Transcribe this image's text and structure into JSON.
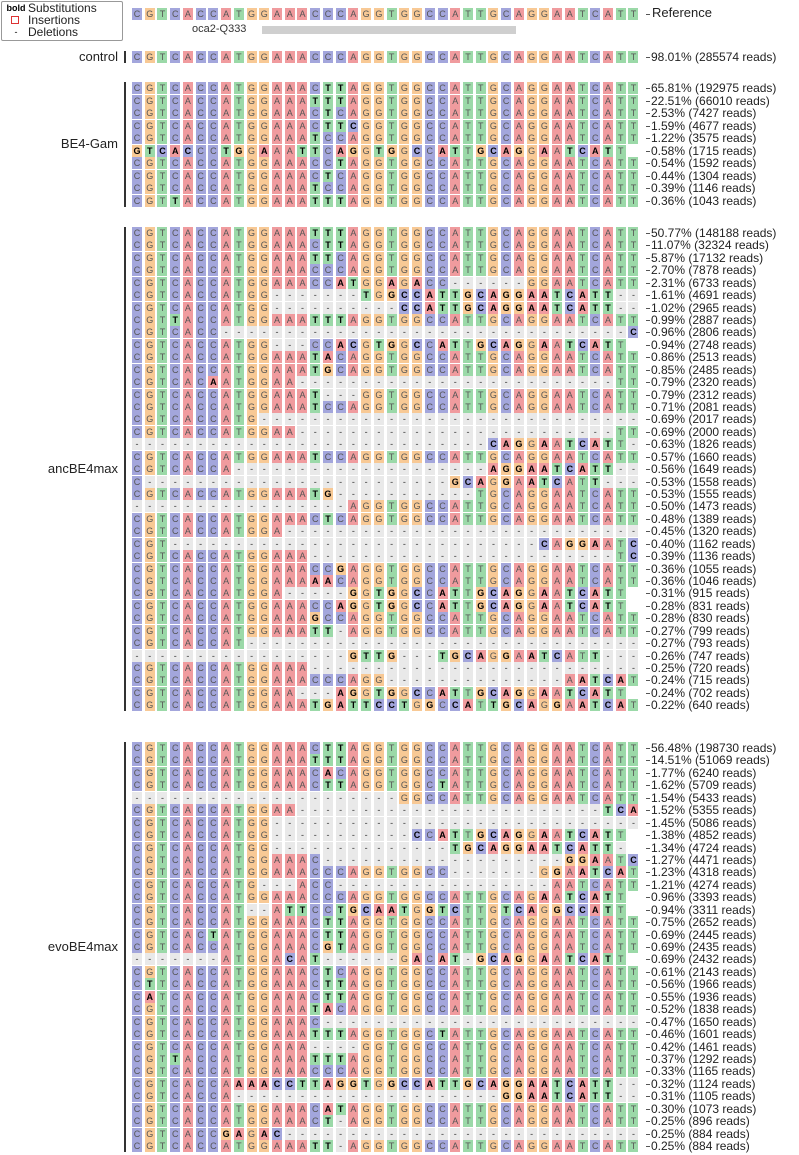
{
  "legend": {
    "substitutions_key": "bold",
    "substitutions": "Substitutions",
    "insertions": "Insertions",
    "deletions_key": "-",
    "deletions": "Deletions"
  },
  "reference": {
    "label": "Reference",
    "sequence": "CGTCACCATGGAAACCCAGGTGGCCATTGCAGGAATCATT",
    "guide_label": "oca2-Q333"
  },
  "base_colors": {
    "A": "#f09b9e",
    "C": "#a3a6dc",
    "G": "#f8c995",
    "T": "#9bd9a8",
    "gap": "#e9e9e9",
    "insertion_box": "#d33333"
  },
  "groups": [
    {
      "name": "control",
      "rows": [
        {
          "seq": "CGTCACCATGGAAACCCAGGTGGCCATTGCAGGAATCATT",
          "label": "98.01% (285574 reads)"
        }
      ]
    },
    {
      "name": "BE4-Gam",
      "rows": [
        {
          "seq": "CGTCACCATGGAAACTTAGGTGGCCATTGCAGGAATCATT",
          "label": "65.81% (192975 reads)"
        },
        {
          "seq": "CGTCACCATGGAAATTTAGGTGGCCATTGCAGGAATCATT",
          "label": "22.51% (66010 reads)"
        },
        {
          "seq": "CGTCACCATGGAAACTCAGGTGGCCATTGCAGGAATCATT",
          "label": "2.53% (7427 reads)"
        },
        {
          "seq": "CGTCACCATGGAAACTTCGGTGGCCATTGCAGGAATCATT",
          "label": "1.59% (4677 reads)"
        },
        {
          "seq": "CGTCACCATGGAAATCCAGGTGGCCATTGCAGGAATCATT",
          "label": "1.22% (3575 reads)"
        },
        {
          "seq": "GTCACCCTGGAAATTCAGGTGGCCATTGCAGGAATCATT",
          "label": "0.58% (1715 reads)"
        },
        {
          "seq": "CGTCACCATGGAAACCTAGGTGGCCATTGCAGGAATCATT",
          "label": "0.54% (1592 reads)"
        },
        {
          "seq": "CGTCACCATGGAAACTCAGGTGGCCATTGCAGGAATCATT",
          "label": "0.44% (1304 reads)"
        },
        {
          "seq": "CGTCACCATGGAAATCCAGGTGGCCATTGCAGGAATCATT",
          "label": "0.39% (1146 reads)"
        },
        {
          "seq": "CGTTACCATGGAAATTTAGGTGGCCATTGCAGGAATCATT",
          "label": "0.36% (1043 reads)"
        }
      ]
    },
    {
      "name": "ancBE4max",
      "rows": [
        {
          "seq": "CGTCACCATGGAAATTTAGGTGGCCATTGCAGGAATCATT",
          "label": "50.77% (148188 reads)"
        },
        {
          "seq": "CGTCACCATGGAAACTTAGGTGGCCATTGCAGGAATCATT",
          "label": "11.07% (32324 reads)"
        },
        {
          "seq": "CGTCACCATGGAAATTCAGGTGGCCATTGCAGGAATCATT",
          "label": "5.87% (17132 reads)"
        },
        {
          "seq": "CGTCACCATGGAAACCCAGGTGGCCATTGCAGGAATCATT",
          "label": "2.70% (7878 reads)"
        },
        {
          "seq": "CGTCACCATGGAAACCATGGAGACC------GGAATCATT",
          "label": "2.31% (6733 reads)"
        },
        {
          "seq": "CGTCACCATGG-------TGGCCATTGCAGGAATCATT--",
          "label": "1.61% (4691 reads)"
        },
        {
          "seq": "CGTCACCATGG----------CCATTGCAGGAATCATT--",
          "label": "1.02% (2965 reads)"
        },
        {
          "seq": "CGTTACCATGGAAATTTAGGTGGCCATTGCAGGAATCATT",
          "label": "0.99% (2887 reads)"
        },
        {
          "seq": "CGTCACC--------------------------------C",
          "label": "0.96% (2806 reads)"
        },
        {
          "seq": "CGTCACCATGG---CCACGTGGCCATTGCAGGAATCATT",
          "label": "0.94% (2748 reads)"
        },
        {
          "seq": "CGTCACCATGGAAATACAGGTGGCCATTGCAGGAATCATT",
          "label": "0.86% (2513 reads)"
        },
        {
          "seq": "CGTCACCATGGAAATGCAGGTGGCCATTGCAGGAATCATT",
          "label": "0.85% (2485 reads)"
        },
        {
          "seq": "CGTCACAATGGAA-------------------------TT",
          "label": "0.79% (2320 reads)"
        },
        {
          "seq": "CGTCACCATGGAAAT---GGTGGCCATTGCAGGAATCATT",
          "label": "0.79% (2312 reads)"
        },
        {
          "seq": "CGTCACCATGGAAATCCAGGTGGCCATTGCAGGAATCATT",
          "label": "0.71% (2081 reads)"
        },
        {
          "seq": "CGTCACCATG------------------------------",
          "label": "0.69% (2017 reads)"
        },
        {
          "seq": "CGTCACCATGGAA-------------------------TT",
          "label": "0.69% (2000 reads)"
        },
        {
          "seq": "----------------------------CAGGAATCATT-",
          "label": "0.63% (1826 reads)"
        },
        {
          "seq": "CGTCACCATGGAAATCCAGGTGGCCATTGCAGGAATCATT",
          "label": "0.57% (1660 reads)"
        },
        {
          "seq": "CGTCACCA--------------------AGGAATCATT--",
          "label": "0.56% (1649 reads)"
        },
        {
          "seq": "C------------------------GCAGGAATCATT---",
          "label": "0.53% (1558 reads)"
        },
        {
          "seq": "CGTCACCATGGAAATG-----------TGCAGGAATCATT",
          "label": "0.53% (1555 reads)"
        },
        {
          "seq": "-----------------AGGTGGCCATTGCAGGAATCATT",
          "label": "0.50% (1473 reads)"
        },
        {
          "seq": "CGTCACCATGGAAACTCAGGTGGCCATTGCAGGAATCATT",
          "label": "0.48% (1389 reads)"
        },
        {
          "seq": "CGTCACCATGGA----------------------------",
          "label": "0.45% (1320 reads)"
        },
        {
          "seq": "CGT-----------------------------CAGGAATCATT",
          "label": "0.40% (1162 reads)"
        },
        {
          "seq": "CGTCACCATGGAAA------------------------TCATT",
          "label": "0.39% (1136 reads)"
        },
        {
          "seq": "CGTCACCATGGAAACCGAGGTGGCCATTGCAGGAATCATT",
          "label": "0.36% (1055 reads)"
        },
        {
          "seq": "CGTCACCATGGAAAAACAGGTGGCCATTGCAGGAATCATT",
          "label": "0.36% (1046 reads)"
        },
        {
          "seq": "CGTCACCATGGA-----GGTGGCCATTGCAGGAATCATT",
          "label": "0.31% (915 reads)"
        },
        {
          "seq": "CGTCACCATGGAAACCAGGTGGCCATTGCAGGAATCATT",
          "label": "0.28% (831 reads)"
        },
        {
          "seq": "CGTCACCATGGAAAGCCAGGTGGCCATTGCAGGAATCATT",
          "label": "0.28% (830 reads)"
        },
        {
          "seq": "CGTCACCATGGAAATT-AGGTGGCCATTGCAGGAATCATT",
          "label": "0.27% (799 reads)"
        },
        {
          "seq": "CGTCACCAT-------------------------------",
          "label": "0.27% (793 reads)"
        },
        {
          "seq": "-----------------GTTG---TGCAGGAATCATT---",
          "label": "0.26% (747 reads)"
        },
        {
          "seq": "CGTCACCATGGAAA--------------------------",
          "label": "0.25% (720 reads)"
        },
        {
          "seq": "CGTCACCATGGAAACCCAGG--------------AATCATT",
          "label": "0.24% (715 reads)"
        },
        {
          "seq": "CGTCACCATGGAA---AGGTGGCCATTGCAGGAATCATT",
          "label": "0.24% (702 reads)"
        },
        {
          "seq": "CGTCACCATGGAAATGATTCCTGGCCATTGCAGGAATCATT",
          "label": "0.22% (640 reads)"
        }
      ]
    },
    {
      "name": "evoBE4max",
      "rows": [
        {
          "seq": "CGTCACCATGGAAACTTAGGTGGCCATTGCAGGAATCATT",
          "label": "56.48% (198730 reads)"
        },
        {
          "seq": "CGTCACCATGGAAATTTAGGTGGCCATTGCAGGAATCATT",
          "label": "14.51% (51069 reads)"
        },
        {
          "seq": "CGTCACCATGGAAACACAGGTGGCCATTGCAGGAATCATT",
          "label": "1.77% (6240 reads)"
        },
        {
          "seq": "CGTCACCATGGAAACTTAGGTGGCTATTGCAGGAATCATT",
          "label": "1.62% (5709 reads)"
        },
        {
          "seq": "---------------------GGCCATTGCAGGAATCATT",
          "label": "1.54% (5433 reads)"
        },
        {
          "seq": "CGTCACCATGGAA------------------------TCATT",
          "label": "1.52% (5355 reads)"
        },
        {
          "seq": "CGTCACCATGG-----------------------------",
          "label": "1.45% (5086 reads)"
        },
        {
          "seq": "CGTCACCATGG-----------CCATTGCAGGAATCATT",
          "label": "1.38% (4852 reads)"
        },
        {
          "seq": "CGTCACCATGG--------------TGCAGGAATCATT-",
          "label": "1.34% (4724 reads)"
        },
        {
          "seq": "CGTCACCATGGAAAC-------------------GGAATCATT",
          "label": "1.27% (4471 reads)"
        },
        {
          "seq": "CGTCACCATGGAAACCCAGGTGGCC-------GGAATCATT",
          "label": "1.23% (4318 reads)"
        },
        {
          "seq": "CGTCACCATG---ACC-----------------AATCATT",
          "label": "1.21% (4274 reads)"
        },
        {
          "seq": "CGTCACCATGGAAACCCAGGTGGCCATTGCAGAATCATT",
          "label": "0.96% (3393 reads)"
        },
        {
          "seq": "CGTCACCAT--ATTCCTGCAATGGTCTTGTCAGGCCATT",
          "label": "0.94% (3311 reads)"
        },
        {
          "seq": "CGTCACCATGGAAACTTAGGTGGCCATTGCAGGAATCATT",
          "label": "0.75% (2652 reads)"
        },
        {
          "seq": "CGTCACTATGGAAACTTAGGTGGCCATTGCAGGAATCATT",
          "label": "0.69% (2445 reads)"
        },
        {
          "seq": "CGTCACCATGGAAACGTAGGTGGCCATTGCAGGAATCATT",
          "label": "0.69% (2435 reads)"
        },
        {
          "seq": "-------ATGGACAT------GACAT-GCAGGAATCATT",
          "label": "0.69% (2432 reads)"
        },
        {
          "seq": "CGTCACCATGGAAACTCAGGTGGCCATTGCAGGAATCATT",
          "label": "0.61% (2143 reads)"
        },
        {
          "seq": "CTTCACCATGGAAACTTAGGTGGCCATTGCAGGAATCATT",
          "label": "0.56% (1966 reads)"
        },
        {
          "seq": "CATCACCATGGAAACTTAGGTGGCCATTGCAGGAATCATT",
          "label": "0.55% (1936 reads)"
        },
        {
          "seq": "CGTCACCATGGAAATACAGGTGGCCATTGCAGGAATCATT",
          "label": "0.52% (1838 reads)"
        },
        {
          "seq": "CGTCACCATGGAAAC----------------------------",
          "label": "0.47% (1650 reads)"
        },
        {
          "seq": "CGTCACCATGGAAATTTAGGTGGCTATTGCAGGAATCATT",
          "label": "0.46% (1601 reads)"
        },
        {
          "seq": "CGTCACCATGGAAA----GGTGGCCATTGCAGGAATCATT",
          "label": "0.42% (1461 reads)"
        },
        {
          "seq": "CGTTACCATGGAAATTTAGGTGGCCATTGCAGGAATCATT",
          "label": "0.37% (1292 reads)"
        },
        {
          "seq": "CGTCACCATGGAAACCCAGGTGGCCATTGCAGGAATCATT",
          "label": "0.33% (1165 reads)"
        },
        {
          "seq": "CGTCACCAAAACCTTAGGTGGCCATTGCAGGAATCATT--",
          "label": "0.32% (1124 reads)"
        },
        {
          "seq": "CGTCACCA---------------------GGAATCATT--",
          "label": "0.31% (1105 reads)"
        },
        {
          "seq": "CGTCACCATGGAAACATAGGTGGCCATTGCAGGAATCATT",
          "label": "0.30% (1073 reads)"
        },
        {
          "seq": "CGTCACCATGGAAACT-AGGTGGCCATTGCAGGAATCATT",
          "label": "0.25% (896 reads)"
        },
        {
          "seq": "CGTCACCGAGAC----------------------------",
          "label": "0.25% (884 reads)"
        },
        {
          "seq": "CGTCACCATGGAAATT-AGGTGGCCATTGCAGGAATCATT",
          "label": "0.25% (884 reads)"
        }
      ]
    }
  ]
}
